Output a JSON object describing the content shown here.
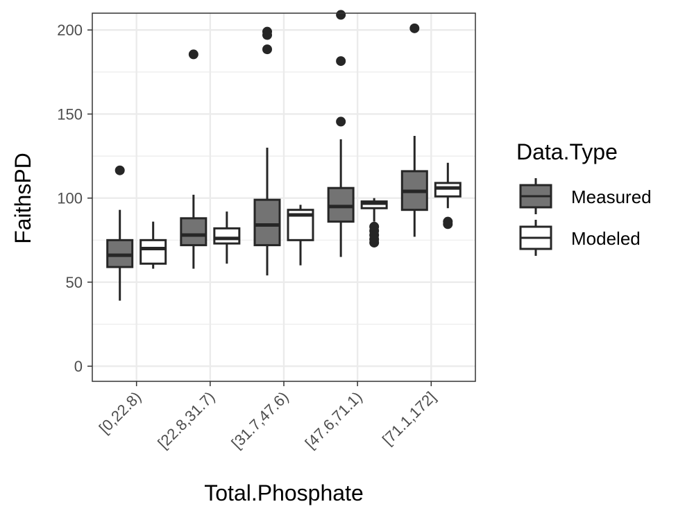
{
  "chart_data": {
    "type": "boxplot",
    "xlabel": "Total.Phosphate",
    "ylabel": "FaithsPD",
    "ylim": [
      -9,
      210
    ],
    "yticks": [
      0,
      50,
      100,
      150,
      200
    ],
    "grid": true,
    "legend": {
      "title": "Data.Type",
      "position": "right",
      "entries": [
        "Measured",
        "Modeled"
      ]
    },
    "colors": {
      "Measured": "#737373",
      "Modeled": "#ffffff",
      "stroke": "#262626",
      "grid": "#ebebeb",
      "panel_border": "#333333"
    },
    "categories": [
      "[0,22.8)",
      "[22.8,31.7)",
      "[31.7,47.6)",
      "[47.6,71.1)",
      "[71.1,172]"
    ],
    "series": [
      {
        "name": "Measured",
        "boxes": [
          {
            "min": 39,
            "q1": 59,
            "median": 66,
            "q3": 75,
            "max": 93,
            "outliers": [
              116.5
            ]
          },
          {
            "min": 58,
            "q1": 72,
            "median": 78,
            "q3": 88,
            "max": 102,
            "outliers": [
              185.5
            ]
          },
          {
            "min": 54,
            "q1": 72,
            "median": 84,
            "q3": 99,
            "max": 130,
            "outliers": [
              188.5,
              197,
              199
            ]
          },
          {
            "min": 65,
            "q1": 86,
            "median": 95,
            "q3": 106,
            "max": 135,
            "outliers": [
              145.5,
              181.5,
              209
            ]
          },
          {
            "min": 77,
            "q1": 93,
            "median": 104,
            "q3": 116,
            "max": 137,
            "outliers": [
              201
            ]
          }
        ]
      },
      {
        "name": "Modeled",
        "boxes": [
          {
            "min": 58,
            "q1": 61,
            "median": 70,
            "q3": 75,
            "max": 86,
            "outliers": []
          },
          {
            "min": 61,
            "q1": 73,
            "median": 76,
            "q3": 82,
            "max": 92,
            "outliers": []
          },
          {
            "min": 60,
            "q1": 75,
            "median": 90,
            "q3": 93,
            "max": 96,
            "outliers": []
          },
          {
            "min": 86,
            "q1": 94,
            "median": 97,
            "q3": 98,
            "max": 100,
            "outliers": [
              73.5,
              75.5,
              78,
              80.5,
              83
            ]
          },
          {
            "min": 94,
            "q1": 101,
            "median": 106,
            "q3": 109,
            "max": 121,
            "outliers": [
              84.5,
              86
            ]
          }
        ]
      }
    ]
  }
}
